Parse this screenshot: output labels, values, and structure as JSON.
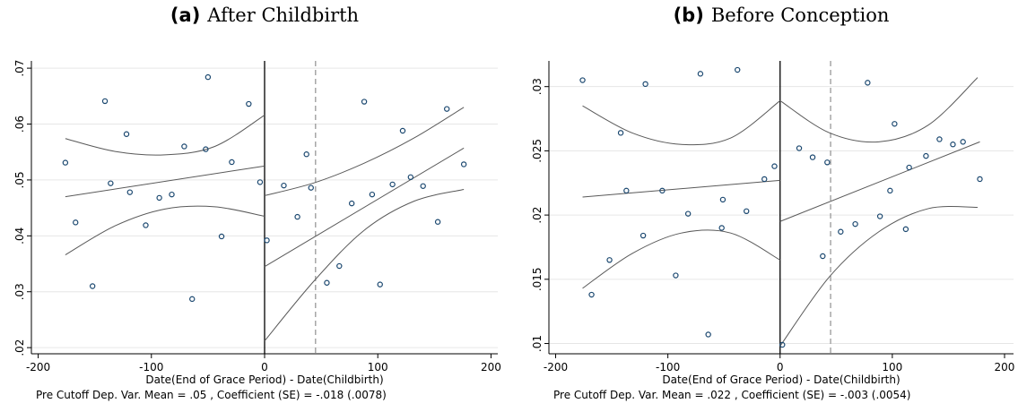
{
  "chart_data": [
    {
      "type": "scatter",
      "panel_label": "(a)",
      "title": "After Childbirth",
      "x_label": "Date(End of Grace Period) - Date(Childbirth)",
      "note": "Pre Cutoff Dep. Var. Mean = .05 , Coefficient (SE) = -.018 (.0078)",
      "xlim": [
        -206,
        206
      ],
      "xticks": [
        -200,
        -100,
        0,
        100,
        200
      ],
      "ylim": [
        0.0189,
        0.0713
      ],
      "yticks": [
        {
          "value": 0.02,
          "label": ".02"
        },
        {
          "value": 0.03,
          "label": ".03"
        },
        {
          "value": 0.04,
          "label": ".04"
        },
        {
          "value": 0.05,
          "label": ".05"
        },
        {
          "value": 0.06,
          "label": ".06"
        },
        {
          "value": 0.07,
          "label": ".07"
        }
      ],
      "grid": true,
      "point_color": "#1a476f",
      "line_color": "#595959",
      "cutoff": 0,
      "reference_line": 45,
      "x": [
        -176,
        -167,
        -152,
        -141,
        -136,
        -122,
        -119,
        -105,
        -93,
        -82,
        -71,
        -64,
        -52,
        -50,
        -38,
        -29,
        -14,
        -4,
        2,
        17,
        29,
        37,
        41,
        55,
        66,
        77,
        88,
        95,
        102,
        113,
        122,
        129,
        140,
        153,
        161,
        176
      ],
      "values": [
        0.0531,
        0.0424,
        0.031,
        0.0641,
        0.0494,
        0.0582,
        0.0478,
        0.0419,
        0.0468,
        0.0474,
        0.056,
        0.0287,
        0.0555,
        0.0684,
        0.0399,
        0.0532,
        0.0636,
        0.0496,
        0.0392,
        0.049,
        0.0434,
        0.0546,
        0.0486,
        0.0316,
        0.0346,
        0.0458,
        0.064,
        0.0474,
        0.0313,
        0.0492,
        0.0588,
        0.0505,
        0.0489,
        0.0425,
        0.0627,
        0.0528
      ],
      "lines": [
        {
          "style": "fit",
          "x": [
            -176,
            0
          ],
          "values": [
            0.047,
            0.0525
          ]
        },
        {
          "style": "fit",
          "x": [
            0,
            176
          ],
          "values": [
            0.0345,
            0.0557
          ]
        },
        {
          "style": "ci",
          "x": [
            -176,
            -132,
            -88,
            -44,
            0
          ],
          "values": [
            0.0574,
            0.0551,
            0.0545,
            0.056,
            0.0616
          ]
        },
        {
          "style": "ci",
          "x": [
            -176,
            -132,
            -88,
            -44,
            0
          ],
          "values": [
            0.0366,
            0.0418,
            0.0448,
            0.0452,
            0.0435
          ]
        },
        {
          "style": "ci",
          "x": [
            0,
            44,
            88,
            132,
            176
          ],
          "values": [
            0.0472,
            0.0495,
            0.053,
            0.0575,
            0.063
          ]
        },
        {
          "style": "ci",
          "x": [
            0,
            44,
            88,
            132,
            176
          ],
          "values": [
            0.0212,
            0.032,
            0.041,
            0.0462,
            0.0483
          ]
        }
      ]
    },
    {
      "type": "scatter",
      "panel_label": "(b)",
      "title": "Before Conception",
      "x_label": "Date(End of Grace Period) - Date(Childbirth)",
      "note": "Pre Cutoff Dep. Var. Mean = .022 , Coefficient (SE) = -.003 (.0054)",
      "xlim": [
        -206,
        208
      ],
      "xticks": [
        -200,
        -100,
        0,
        100,
        200
      ],
      "ylim": [
        0.0092,
        0.032
      ],
      "yticks": [
        {
          "value": 0.01,
          "label": ".01"
        },
        {
          "value": 0.015,
          "label": ".015"
        },
        {
          "value": 0.02,
          "label": ".02"
        },
        {
          "value": 0.025,
          "label": ".025"
        },
        {
          "value": 0.03,
          "label": ".03"
        }
      ],
      "grid": true,
      "point_color": "#1a476f",
      "line_color": "#595959",
      "cutoff": 0,
      "reference_line": 45,
      "x": [
        -176,
        -168,
        -152,
        -142,
        -137,
        -122,
        -120,
        -105,
        -93,
        -82,
        -71,
        -64,
        -51,
        -52,
        -38,
        -30,
        -14,
        -5,
        2,
        17,
        29,
        38,
        42,
        54,
        67,
        78,
        89,
        98,
        102,
        112,
        115,
        130,
        142,
        154,
        163,
        178
      ],
      "values": [
        0.0305,
        0.0138,
        0.0165,
        0.0264,
        0.0219,
        0.0184,
        0.0302,
        0.0219,
        0.0153,
        0.0201,
        0.031,
        0.0107,
        0.0212,
        0.019,
        0.0313,
        0.0203,
        0.0228,
        0.0238,
        0.0099,
        0.0252,
        0.0245,
        0.0168,
        0.0241,
        0.0187,
        0.0193,
        0.0303,
        0.0199,
        0.0219,
        0.0271,
        0.0189,
        0.0237,
        0.0246,
        0.0259,
        0.0255,
        0.0257,
        0.0228
      ],
      "lines": [
        {
          "style": "fit",
          "x": [
            -176,
            0
          ],
          "values": [
            0.0214,
            0.0227
          ]
        },
        {
          "style": "fit",
          "x": [
            0,
            178
          ],
          "values": [
            0.0195,
            0.0257
          ]
        },
        {
          "style": "ci",
          "x": [
            -176,
            -132,
            -88,
            -44,
            0
          ],
          "values": [
            0.0285,
            0.0264,
            0.0255,
            0.026,
            0.0289
          ]
        },
        {
          "style": "ci",
          "x": [
            -176,
            -132,
            -88,
            -44,
            0
          ],
          "values": [
            0.0143,
            0.017,
            0.0186,
            0.0186,
            0.0165
          ]
        },
        {
          "style": "ci",
          "x": [
            0,
            44,
            88,
            132,
            176
          ],
          "values": [
            0.0289,
            0.0264,
            0.0257,
            0.027,
            0.0307
          ]
        },
        {
          "style": "ci",
          "x": [
            0,
            44,
            88,
            132,
            176
          ],
          "values": [
            0.0098,
            0.0152,
            0.0187,
            0.0205,
            0.0206
          ]
        }
      ]
    }
  ]
}
